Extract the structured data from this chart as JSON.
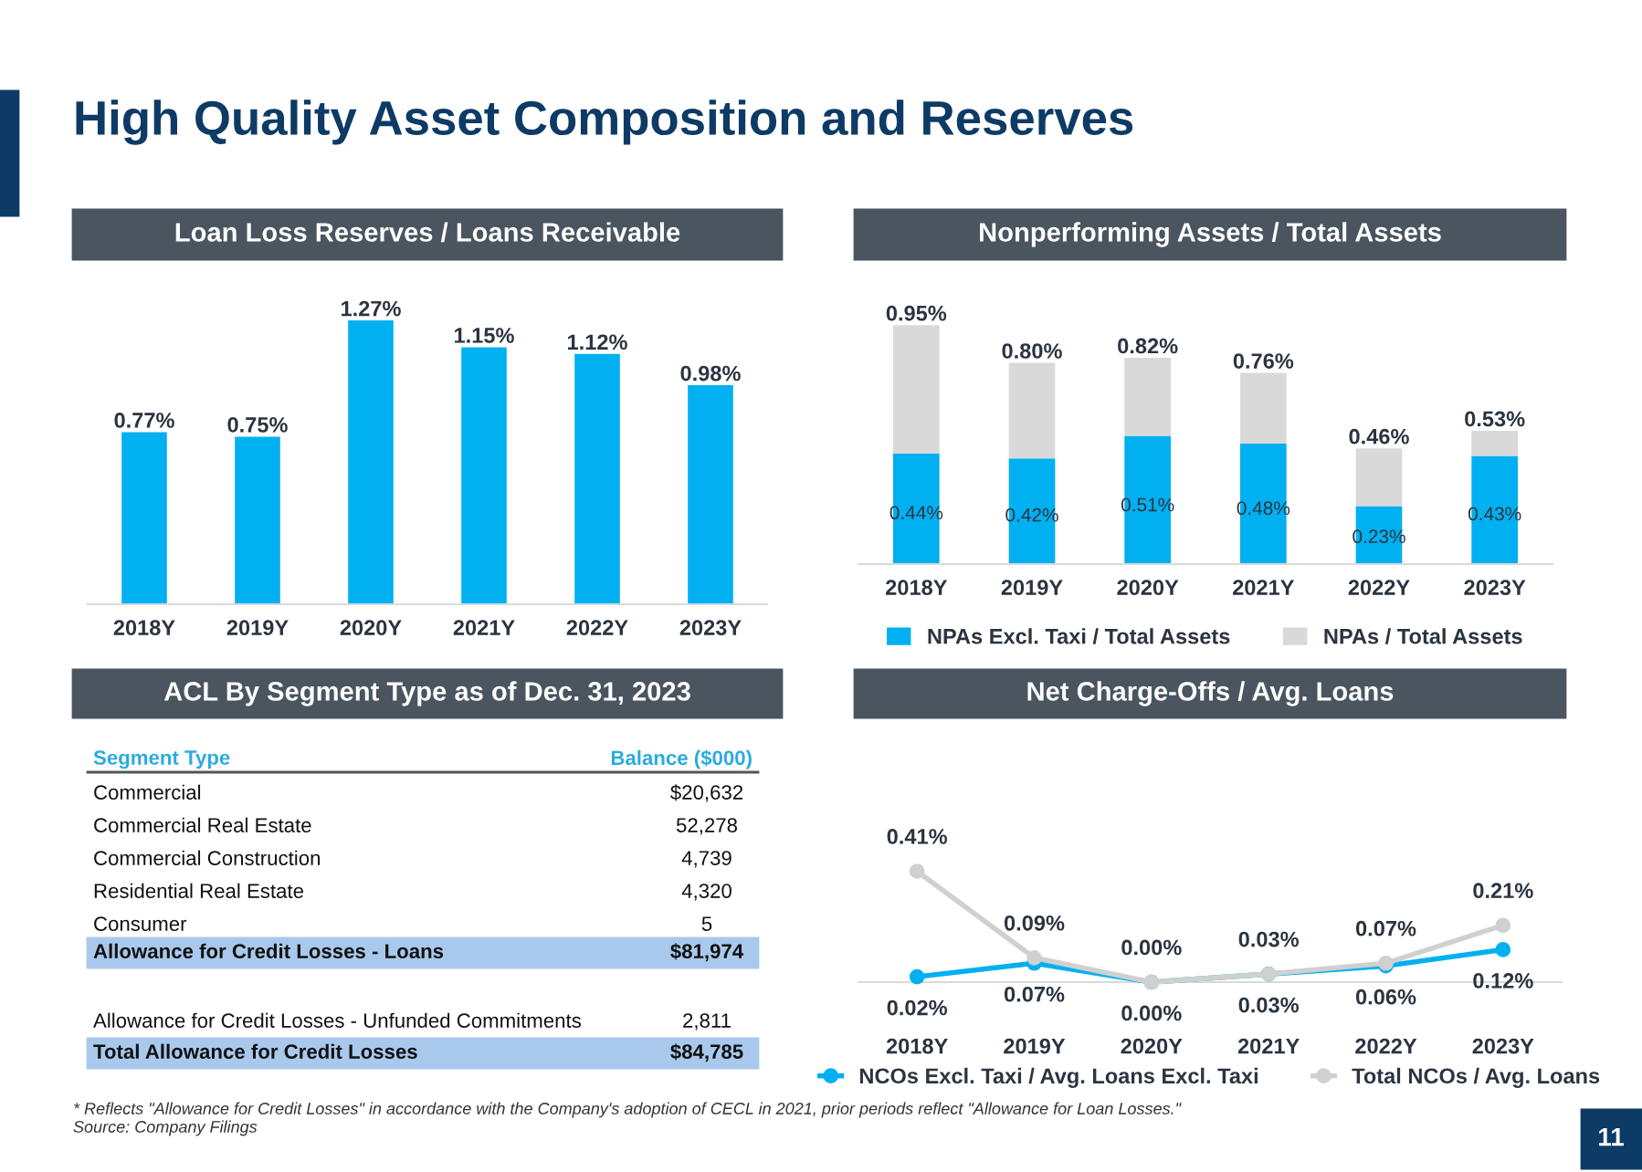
{
  "chart_data": [
    {
      "type": "other",
      "title": "High Quality Asset Composition and Reserves",
      "annotations": [
        "* Reflects \"Allowance for Credit Losses\" in accordance with the Company's adoption of CECL in 2021, prior periods reflect \"Allowance for Loan Losses.\"",
        "Source: Company Filings",
        "11"
      ]
    },
    {
      "type": "bar",
      "title": "Loan Loss Reserves / Loans Receivable",
      "categories": [
        "2018Y",
        "2019Y",
        "2020Y",
        "2021Y",
        "2022Y",
        "2023Y"
      ],
      "series": [
        {
          "color": "#00b0f0",
          "values": [
            0.77,
            0.75,
            1.27,
            1.15,
            1.12,
            0.98
          ],
          "value_labels": [
            "0.77%",
            "0.75%",
            "1.27%",
            "1.15%",
            "1.12%",
            "0.98%"
          ]
        }
      ]
    },
    {
      "type": "bar",
      "stacked": true,
      "title": "Nonperforming Assets / Total Assets",
      "categories": [
        "2018Y",
        "2019Y",
        "2020Y",
        "2021Y",
        "2022Y",
        "2023Y"
      ],
      "legend": "bottom",
      "series": [
        {
          "name": "NPAs Excl. Taxi / Total Assets",
          "color": "#00b0f0",
          "values": [
            0.44,
            0.42,
            0.51,
            0.48,
            0.23,
            0.43
          ],
          "value_labels": [
            "0.44%",
            "0.42%",
            "0.51%",
            "0.48%",
            "0.23%",
            "0.43%"
          ]
        },
        {
          "name": "NPAs / Total Assets",
          "color": "#d9d9d9",
          "values": [
            0.51,
            0.38,
            0.31,
            0.28,
            0.23,
            0.1
          ]
        }
      ],
      "totals": [
        "0.95%",
        "0.80%",
        "0.82%",
        "0.76%",
        "0.46%",
        "0.53%"
      ]
    },
    {
      "type": "other",
      "title": "ACL By Segment Type as of Dec. 31, 2023",
      "annotations": [
        "Segment Type",
        "Balance ($000)",
        "Commercial",
        "$20,632",
        "Commercial Real Estate",
        "52,278",
        "Commercial Construction",
        "4,739",
        "Residential Real Estate",
        "4,320",
        "Consumer",
        "5",
        "Allowance for Credit Losses - Loans",
        "$81,974",
        "Allowance for Credit Losses - Unfunded Commitments",
        "2,811",
        "Total Allowance for Credit Losses",
        "$84,785"
      ]
    },
    {
      "type": "line",
      "title": "Net Charge-Offs / Avg. Loans",
      "categories": [
        "2018Y",
        "2019Y",
        "2020Y",
        "2021Y",
        "2022Y",
        "2023Y"
      ],
      "legend": "bottom",
      "marker": "circle",
      "series": [
        {
          "name": "NCOs Excl. Taxi / Avg. Loans Excl. Taxi",
          "color": "#00b0f0",
          "values": [
            0.02,
            0.07,
            0.0,
            0.03,
            0.06,
            0.12
          ],
          "value_labels": [
            "0.02%",
            "0.07%",
            "0.00%",
            "0.03%",
            "0.06%",
            "0.12%"
          ]
        },
        {
          "name": "Total NCOs / Avg. Loans",
          "color": "#d0d0d0",
          "values": [
            0.41,
            0.09,
            0.0,
            0.03,
            0.07,
            0.21
          ],
          "value_labels": [
            "0.41%",
            "0.09%",
            "0.00%",
            "0.03%",
            "0.07%",
            "0.21%"
          ]
        }
      ]
    }
  ]
}
